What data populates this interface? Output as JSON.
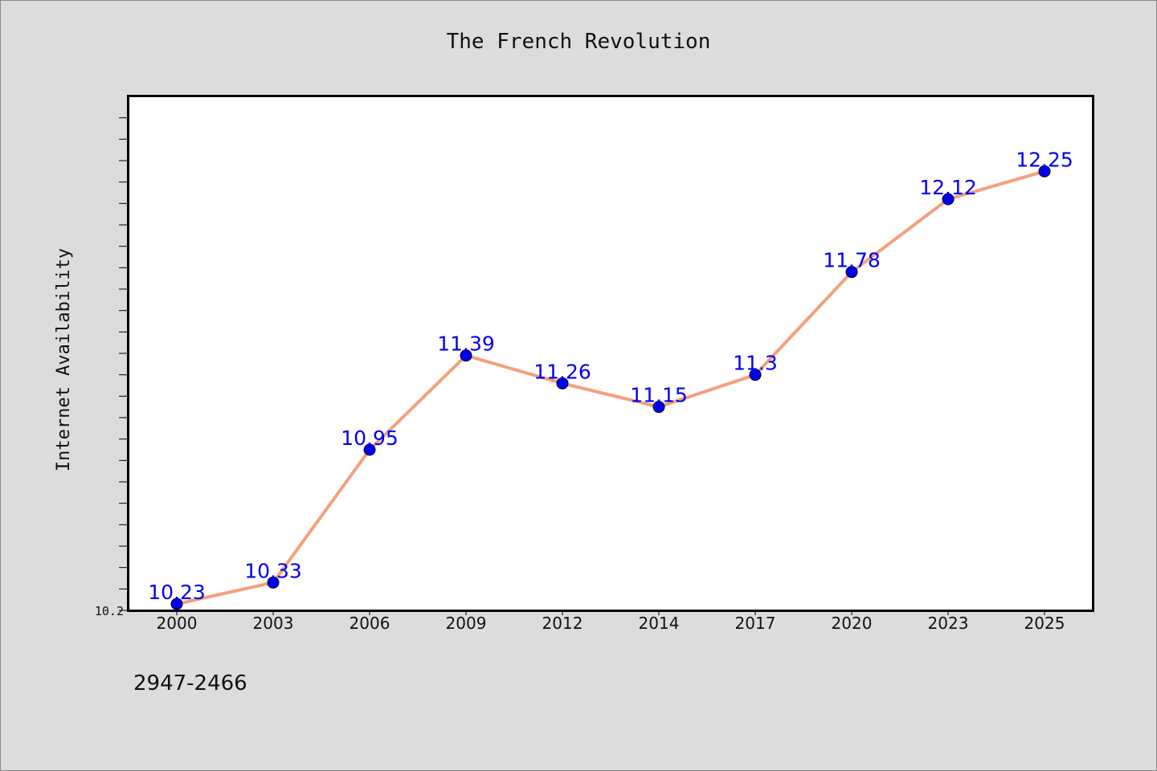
{
  "chart_data": {
    "type": "line",
    "title": "The French Revolution",
    "xlabel": "",
    "ylabel": "Internet Availability",
    "categories": [
      "2000",
      "2003",
      "2006",
      "2009",
      "2012",
      "2014",
      "2017",
      "2020",
      "2023",
      "2025"
    ],
    "series": [
      {
        "values": [
          10.23,
          10.33,
          10.95,
          11.39,
          11.26,
          11.15,
          11.3,
          11.78,
          12.12,
          12.25
        ]
      }
    ],
    "y_tick_labels": [
      "10.2"
    ],
    "ylim": [
      10.2,
      12.6
    ],
    "grid": false,
    "colors": {
      "line": "#f4a07c",
      "marker": "#0000ee",
      "data_label": "#0000ee",
      "background": "#dcdcdc",
      "plot_background": "#ffffff"
    }
  },
  "footer_text": "2947-2466"
}
